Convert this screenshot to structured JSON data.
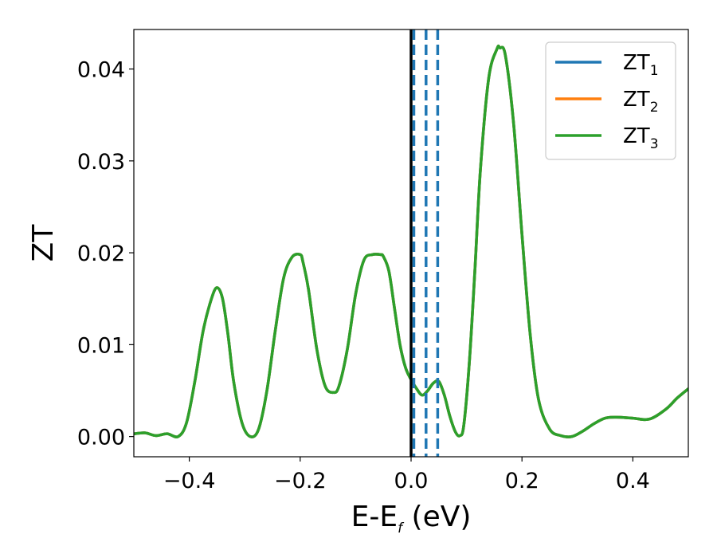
{
  "chart_data": {
    "type": "line",
    "xlabel": "E-E",
    "xlabel_sub": "f",
    "xlabel_unit": " (eV)",
    "ylabel": "ZT",
    "xlim": [
      -0.5,
      0.5
    ],
    "ylim": [
      -0.0022,
      0.0443
    ],
    "xticks": [
      -0.4,
      -0.2,
      0.0,
      0.2,
      0.4
    ],
    "xtick_labels": [
      "−0.4",
      "−0.2",
      "0.0",
      "0.2",
      "0.4"
    ],
    "yticks": [
      0.0,
      0.01,
      0.02,
      0.03,
      0.04
    ],
    "ytick_labels": [
      "0.00",
      "0.01",
      "0.02",
      "0.03",
      "0.04"
    ],
    "grid": false,
    "legend_position": "top-right",
    "vertical_solid_line": {
      "x": 0.0,
      "color": "#000000"
    },
    "vertical_dashed_lines": {
      "x": [
        0.005,
        0.027,
        0.048
      ],
      "color": "#1f77b4"
    },
    "series": [
      {
        "name": "ZT",
        "name_sub": "1",
        "color": "#1f77b4",
        "x": [
          -0.5,
          -0.48,
          -0.46,
          -0.44,
          -0.42,
          -0.405,
          -0.39,
          -0.375,
          -0.36,
          -0.35,
          -0.34,
          -0.33,
          -0.32,
          -0.305,
          -0.29,
          -0.275,
          -0.26,
          -0.245,
          -0.23,
          -0.215,
          -0.2,
          -0.195,
          -0.185,
          -0.17,
          -0.155,
          -0.14,
          -0.13,
          -0.115,
          -0.1,
          -0.085,
          -0.07,
          -0.055,
          -0.05,
          -0.04,
          -0.03,
          -0.02,
          -0.01,
          0.0,
          0.01,
          0.02,
          0.03,
          0.04,
          0.05,
          0.06,
          0.07,
          0.08,
          0.088,
          0.095,
          0.105,
          0.115,
          0.125,
          0.14,
          0.155,
          0.16,
          0.17,
          0.185,
          0.2,
          0.215,
          0.23,
          0.25,
          0.27,
          0.29,
          0.31,
          0.33,
          0.35,
          0.37,
          0.4,
          0.43,
          0.46,
          0.48,
          0.5
        ],
        "y": [
          0.0003,
          0.0004,
          0.0001,
          0.0003,
          0.0,
          0.0015,
          0.006,
          0.0115,
          0.015,
          0.0162,
          0.015,
          0.011,
          0.006,
          0.0015,
          0.0,
          0.0008,
          0.005,
          0.0115,
          0.0172,
          0.0195,
          0.0198,
          0.019,
          0.016,
          0.0095,
          0.0055,
          0.0048,
          0.0055,
          0.0095,
          0.0155,
          0.0192,
          0.0198,
          0.0198,
          0.0196,
          0.018,
          0.014,
          0.01,
          0.0075,
          0.0062,
          0.0052,
          0.0045,
          0.005,
          0.0058,
          0.006,
          0.0045,
          0.0022,
          0.0005,
          0.0001,
          0.0012,
          0.008,
          0.018,
          0.029,
          0.039,
          0.0422,
          0.0423,
          0.0415,
          0.034,
          0.022,
          0.011,
          0.004,
          0.0008,
          0.0001,
          0.0,
          0.0006,
          0.0014,
          0.002,
          0.0021,
          0.002,
          0.0019,
          0.003,
          0.0042,
          0.0052
        ]
      },
      {
        "name": "ZT",
        "name_sub": "2",
        "color": "#ff7f0e",
        "x": [
          -0.5,
          -0.48,
          -0.46,
          -0.44,
          -0.42,
          -0.405,
          -0.39,
          -0.375,
          -0.36,
          -0.35,
          -0.34,
          -0.33,
          -0.32,
          -0.305,
          -0.29,
          -0.275,
          -0.26,
          -0.245,
          -0.23,
          -0.215,
          -0.2,
          -0.195,
          -0.185,
          -0.17,
          -0.155,
          -0.14,
          -0.13,
          -0.115,
          -0.1,
          -0.085,
          -0.07,
          -0.055,
          -0.05,
          -0.04,
          -0.03,
          -0.02,
          -0.01,
          0.0,
          0.01,
          0.02,
          0.03,
          0.04,
          0.05,
          0.06,
          0.07,
          0.08,
          0.088,
          0.095,
          0.105,
          0.115,
          0.125,
          0.14,
          0.155,
          0.16,
          0.17,
          0.185,
          0.2,
          0.215,
          0.23,
          0.25,
          0.27,
          0.29,
          0.31,
          0.33,
          0.35,
          0.37,
          0.4,
          0.43,
          0.46,
          0.48,
          0.5
        ],
        "y": [
          0.0003,
          0.0004,
          0.0001,
          0.0003,
          0.0,
          0.0015,
          0.006,
          0.0115,
          0.015,
          0.0162,
          0.015,
          0.011,
          0.006,
          0.0015,
          0.0,
          0.0008,
          0.005,
          0.0115,
          0.0172,
          0.0195,
          0.0198,
          0.019,
          0.016,
          0.0095,
          0.0055,
          0.0048,
          0.0055,
          0.0095,
          0.0155,
          0.0192,
          0.0198,
          0.0198,
          0.0196,
          0.018,
          0.014,
          0.01,
          0.0075,
          0.0062,
          0.0052,
          0.0045,
          0.005,
          0.0058,
          0.006,
          0.0045,
          0.0022,
          0.0005,
          0.0001,
          0.0012,
          0.008,
          0.018,
          0.029,
          0.039,
          0.0422,
          0.0423,
          0.0415,
          0.034,
          0.022,
          0.011,
          0.004,
          0.0008,
          0.0001,
          0.0,
          0.0006,
          0.0014,
          0.002,
          0.0021,
          0.002,
          0.0019,
          0.003,
          0.0042,
          0.0052
        ]
      },
      {
        "name": "ZT",
        "name_sub": "3",
        "color": "#2ca02c",
        "x": [
          -0.5,
          -0.48,
          -0.46,
          -0.44,
          -0.42,
          -0.405,
          -0.39,
          -0.375,
          -0.36,
          -0.35,
          -0.34,
          -0.33,
          -0.32,
          -0.305,
          -0.29,
          -0.275,
          -0.26,
          -0.245,
          -0.23,
          -0.215,
          -0.2,
          -0.195,
          -0.185,
          -0.17,
          -0.155,
          -0.14,
          -0.13,
          -0.115,
          -0.1,
          -0.085,
          -0.07,
          -0.055,
          -0.05,
          -0.04,
          -0.03,
          -0.02,
          -0.01,
          0.0,
          0.01,
          0.02,
          0.03,
          0.04,
          0.05,
          0.06,
          0.07,
          0.08,
          0.088,
          0.095,
          0.105,
          0.115,
          0.125,
          0.14,
          0.155,
          0.16,
          0.17,
          0.185,
          0.2,
          0.215,
          0.23,
          0.25,
          0.27,
          0.29,
          0.31,
          0.33,
          0.35,
          0.37,
          0.4,
          0.43,
          0.46,
          0.48,
          0.5
        ],
        "y": [
          0.0003,
          0.0004,
          0.0001,
          0.0003,
          0.0,
          0.0015,
          0.006,
          0.0115,
          0.015,
          0.0162,
          0.015,
          0.011,
          0.006,
          0.0015,
          0.0,
          0.0008,
          0.005,
          0.0115,
          0.0172,
          0.0195,
          0.0198,
          0.019,
          0.016,
          0.0095,
          0.0055,
          0.0048,
          0.0055,
          0.0095,
          0.0155,
          0.0192,
          0.0198,
          0.0198,
          0.0196,
          0.018,
          0.014,
          0.01,
          0.0075,
          0.0062,
          0.0052,
          0.0045,
          0.005,
          0.0058,
          0.006,
          0.0045,
          0.0022,
          0.0005,
          0.0001,
          0.0012,
          0.008,
          0.018,
          0.029,
          0.039,
          0.0422,
          0.0423,
          0.0415,
          0.034,
          0.022,
          0.011,
          0.004,
          0.0008,
          0.0001,
          0.0,
          0.0006,
          0.0014,
          0.002,
          0.0021,
          0.002,
          0.0019,
          0.003,
          0.0042,
          0.0052
        ]
      }
    ]
  }
}
